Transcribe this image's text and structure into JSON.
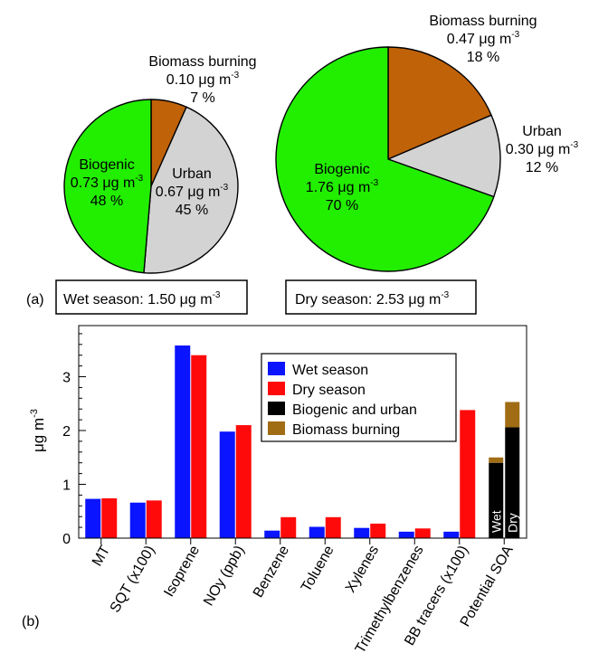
{
  "panel_labels": {
    "a": "(a)",
    "b": "(b)"
  },
  "colors": {
    "biogenic": "#22ee00",
    "urban": "#d3d3d3",
    "biomass": "#c06208",
    "wet_bar": "#0a14ff",
    "dry_bar": "#ff0a0a",
    "bio_urban": "#000000",
    "bb_stack": "#a06c14"
  },
  "chart_data": [
    {
      "type": "pie",
      "title": "Wet season: 1.50 μg m^-3",
      "title_parts": {
        "text": "Wet season: 1.50 μg m",
        "sup": "-3"
      },
      "unit_parts": {
        "text": " μg m",
        "sup": "-3"
      },
      "slices": [
        {
          "name": "Biomass burning",
          "value": 0.1,
          "value_label": "0.10",
          "percent": 7,
          "percent_label": "7 %"
        },
        {
          "name": "Urban",
          "value": 0.67,
          "value_label": "0.67",
          "percent": 45,
          "percent_label": "45 %"
        },
        {
          "name": "Biogenic",
          "value": 0.73,
          "value_label": "0.73",
          "percent": 48,
          "percent_label": "48  %"
        }
      ]
    },
    {
      "type": "pie",
      "title": "Dry season: 2.53 μg m^-3",
      "title_parts": {
        "text": "Dry season: 2.53 μg m",
        "sup": "-3"
      },
      "unit_parts": {
        "text": " μg m",
        "sup": "-3"
      },
      "slices": [
        {
          "name": "Biomass burning",
          "value": 0.47,
          "value_label": "0.47",
          "percent": 18,
          "percent_label": "18 %"
        },
        {
          "name": "Urban",
          "value": 0.3,
          "value_label": "0.30",
          "percent": 12,
          "percent_label": "12 %"
        },
        {
          "name": "Biogenic",
          "value": 1.76,
          "value_label": "1.76",
          "percent": 70,
          "percent_label": "70 %"
        }
      ]
    },
    {
      "type": "bar",
      "categories": [
        "MT",
        "SQT (x100)",
        "Isoprene",
        "NOy (ppb)",
        "Benzene",
        "Toluene",
        "Xylenes",
        "Trimethylbenzenes",
        "BB tracers (x100)",
        "Potential SOA"
      ],
      "series": [
        {
          "name": "Wet season",
          "values": [
            0.73,
            0.66,
            3.58,
            1.98,
            0.14,
            0.21,
            0.19,
            0.12,
            0.12,
            null
          ]
        },
        {
          "name": "Dry season",
          "values": [
            0.74,
            0.7,
            3.4,
            2.1,
            0.39,
            0.39,
            0.27,
            0.18,
            2.38,
            null
          ]
        }
      ],
      "stacked_potential_soa": {
        "category": "Potential SOA",
        "stack_series": [
          "Biogenic and urban",
          "Biomass burning"
        ],
        "bars": [
          {
            "label": "Wet",
            "biogenic_urban": 1.4,
            "biomass_burning": 0.1
          },
          {
            "label": "Dry",
            "biogenic_urban": 2.06,
            "biomass_burning": 0.47
          }
        ]
      },
      "legend": [
        "Wet season",
        "Dry season",
        "Biogenic and urban",
        "Biomass burning"
      ],
      "legend_position": "top-right",
      "ylabel": "μg m^-3",
      "ylabel_parts": {
        "text": "μg m",
        "sup": "-3"
      },
      "ylim": [
        0,
        3.95
      ],
      "yticks": [
        0,
        1,
        2,
        3
      ],
      "minor_ticks": true,
      "grid": false
    }
  ]
}
